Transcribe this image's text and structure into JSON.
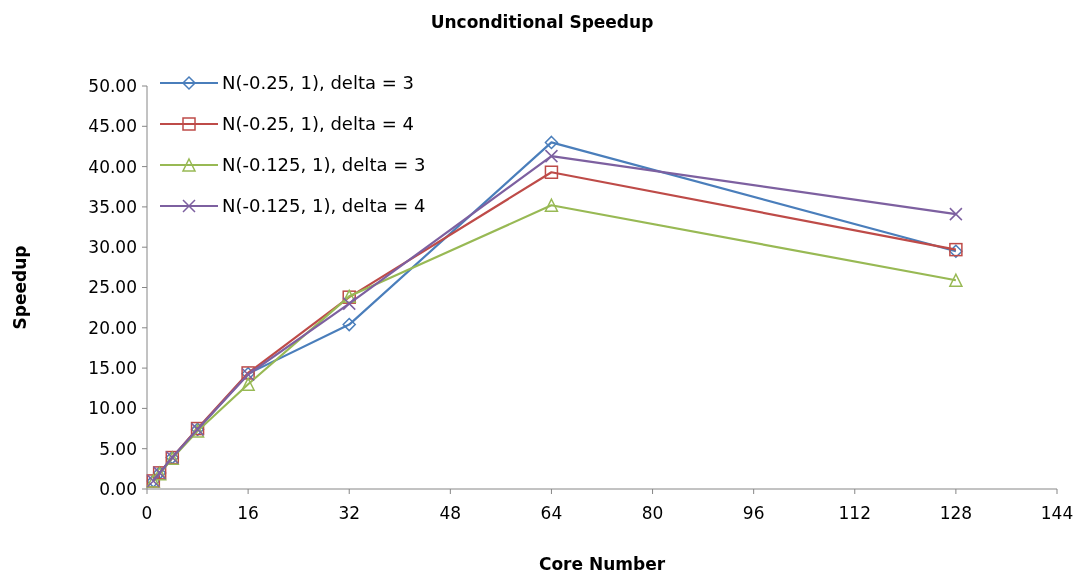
{
  "chart_data": {
    "type": "line",
    "title": "Unconditional Speedup",
    "xlabel": "Core Number",
    "ylabel": "Speedup",
    "xlim": [
      0,
      144
    ],
    "xticks": [
      0,
      16,
      32,
      48,
      64,
      80,
      96,
      112,
      128,
      144
    ],
    "ylim": [
      0,
      50
    ],
    "yticks": [
      {
        "value": 0,
        "label": "0.00"
      },
      {
        "value": 5,
        "label": "5.00"
      },
      {
        "value": 10,
        "label": "10.00"
      },
      {
        "value": 15,
        "label": "15.00"
      },
      {
        "value": 20,
        "label": "20.00"
      },
      {
        "value": 25,
        "label": "25.00"
      },
      {
        "value": 30,
        "label": "30.00"
      },
      {
        "value": 35,
        "label": "35.00"
      },
      {
        "value": 40,
        "label": "40.00"
      },
      {
        "value": 45,
        "label": "45.00"
      },
      {
        "value": 50,
        "label": "50.00"
      }
    ],
    "x": [
      1,
      2,
      4,
      8,
      16,
      32,
      64,
      128
    ],
    "grid": false,
    "legend": "top left",
    "series": [
      {
        "name": "N(-0.25, 1), delta = 3",
        "color": "#4a7ebb",
        "marker": "diamond",
        "values": [
          1.0,
          2.0,
          3.9,
          7.4,
          14.3,
          20.4,
          43.0,
          29.5
        ]
      },
      {
        "name": "N(-0.25, 1), delta = 4",
        "color": "#be4b48",
        "marker": "square",
        "values": [
          1.0,
          2.0,
          3.9,
          7.5,
          14.4,
          23.8,
          39.3,
          29.7
        ]
      },
      {
        "name": "N(-0.125, 1), delta = 3",
        "color": "#98b954",
        "marker": "triangle",
        "values": [
          1.0,
          1.9,
          3.8,
          7.2,
          13.0,
          23.9,
          35.2,
          25.9
        ]
      },
      {
        "name": "N(-0.125, 1), delta = 4",
        "color": "#7d60a0",
        "marker": "cross",
        "values": [
          1.0,
          2.0,
          3.9,
          7.4,
          14.2,
          23.0,
          41.3,
          34.1
        ]
      }
    ]
  }
}
